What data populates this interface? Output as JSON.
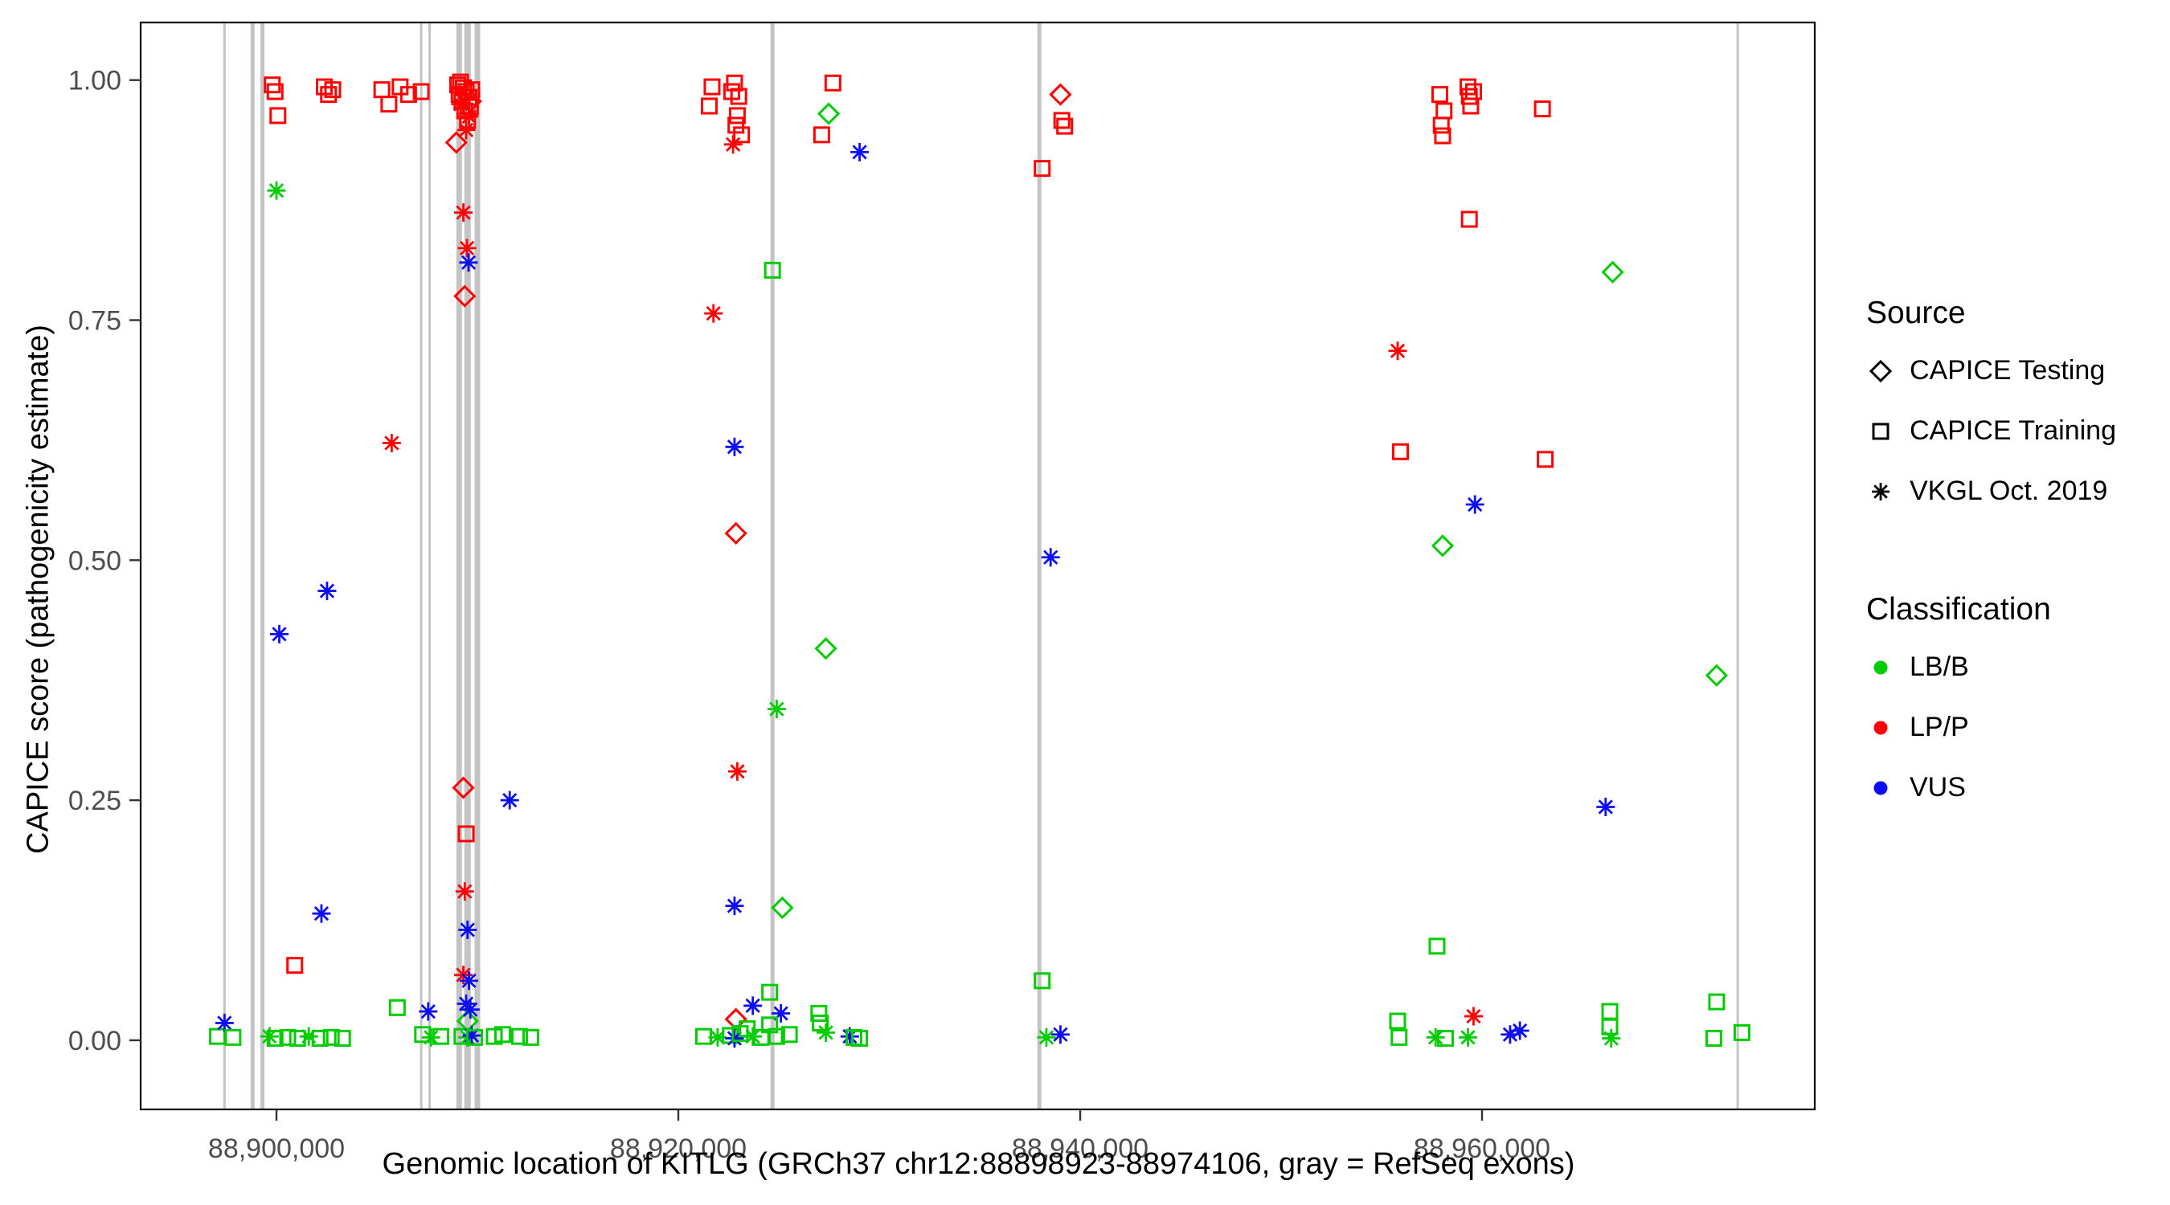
{
  "colors": {
    "LB/B": "#00CC00",
    "LP/P": "#FF0000",
    "VUS": "#0E0EF5"
  },
  "legend": {
    "source": {
      "title": "Source",
      "items": [
        {
          "label": "CAPICE Testing",
          "marker": "diamond"
        },
        {
          "label": "CAPICE Training",
          "marker": "square"
        },
        {
          "label": "VKGL Oct. 2019",
          "marker": "asterisk"
        }
      ]
    },
    "classification": {
      "title": "Classification",
      "items": [
        {
          "label": "LB/B",
          "color": "#00CC00"
        },
        {
          "label": "LP/P",
          "color": "#FF0000"
        },
        {
          "label": "VUS",
          "color": "#0E0EF5"
        }
      ]
    }
  },
  "chart_data": {
    "type": "scatter",
    "title": "",
    "xlabel": "Genomic location of KITLG (GRCh37 chr12:88898923-88974106, gray = RefSeq exons)",
    "ylabel": "CAPICE score (pathogenicity estimate)",
    "xlim": [
      88893240,
      88976560
    ],
    "ylim": [
      -0.072,
      1.06
    ],
    "xticks": [
      {
        "value": 88900000,
        "label": "88,900,000"
      },
      {
        "value": 88920000,
        "label": "88,920,000"
      },
      {
        "value": 88940000,
        "label": "88,940,000"
      },
      {
        "value": 88960000,
        "label": "88,960,000"
      }
    ],
    "yticks": [
      {
        "value": 0.0,
        "label": "0.00"
      },
      {
        "value": 0.25,
        "label": "0.25"
      },
      {
        "value": 0.5,
        "label": "0.50"
      },
      {
        "value": 0.75,
        "label": "0.75"
      },
      {
        "value": 1.0,
        "label": "1.00"
      }
    ],
    "exon_color": "#C4C4C4",
    "exons": [
      {
        "x": 88897413,
        "w": 3
      },
      {
        "x": 88898811,
        "w": 5
      },
      {
        "x": 88899301,
        "w": 5
      },
      {
        "x": 88907203,
        "w": 3
      },
      {
        "x": 88907622,
        "w": 3
      },
      {
        "x": 88909091,
        "w": 7
      },
      {
        "x": 88909510,
        "w": 8
      },
      {
        "x": 88910000,
        "w": 7
      },
      {
        "x": 88924686,
        "w": 5
      },
      {
        "x": 88937969,
        "w": 5
      },
      {
        "x": 88972725,
        "w": 3
      }
    ],
    "points": {
      "columns": [
        "genomic_position",
        "capice_score",
        "source",
        "classification"
      ],
      "source_codes": {
        "testing": "CAPICE Testing",
        "training": "CAPICE Training",
        "vkgl": "VKGL Oct. 2019"
      },
      "rows": [
        [
          88897063,
          0.004,
          "training",
          "LB/B"
        ],
        [
          88897413,
          0.018,
          "vkgl",
          "VUS"
        ],
        [
          88897833,
          0.003,
          "training",
          "LB/B"
        ],
        [
          88899650,
          0.004,
          "vkgl",
          "LB/B"
        ],
        [
          88899930,
          0.002,
          "training",
          "LB/B"
        ],
        [
          88900559,
          0.003,
          "training",
          "LB/B"
        ],
        [
          88901049,
          0.002,
          "training",
          "LB/B"
        ],
        [
          88901608,
          0.004,
          "vkgl",
          "LB/B"
        ],
        [
          88902168,
          0.002,
          "training",
          "LB/B"
        ],
        [
          88902727,
          0.003,
          "training",
          "LB/B"
        ],
        [
          88903287,
          0.002,
          "training",
          "LB/B"
        ],
        [
          88899790,
          0.995,
          "training",
          "LP/P"
        ],
        [
          88899930,
          0.988,
          "training",
          "LP/P"
        ],
        [
          88900070,
          0.963,
          "training",
          "LP/P"
        ],
        [
          88902380,
          0.993,
          "training",
          "LP/P"
        ],
        [
          88902590,
          0.985,
          "training",
          "LP/P"
        ],
        [
          88902800,
          0.99,
          "training",
          "LP/P"
        ],
        [
          88905245,
          0.99,
          "training",
          "LP/P"
        ],
        [
          88905594,
          0.975,
          "training",
          "LP/P"
        ],
        [
          88906153,
          0.993,
          "training",
          "LP/P"
        ],
        [
          88906573,
          0.985,
          "training",
          "LP/P"
        ],
        [
          88907202,
          0.988,
          "training",
          "LP/P"
        ],
        [
          88900000,
          0.885,
          "vkgl",
          "LB/B"
        ],
        [
          88905734,
          0.622,
          "vkgl",
          "LP/P"
        ],
        [
          88900140,
          0.423,
          "vkgl",
          "VUS"
        ],
        [
          88902517,
          0.468,
          "vkgl",
          "VUS"
        ],
        [
          88902238,
          0.132,
          "vkgl",
          "VUS"
        ],
        [
          88900909,
          0.078,
          "training",
          "LP/P"
        ],
        [
          88906013,
          0.034,
          "training",
          "LB/B"
        ],
        [
          88907272,
          0.006,
          "training",
          "LB/B"
        ],
        [
          88907692,
          0.003,
          "vkgl",
          "LB/B"
        ],
        [
          88908181,
          0.004,
          "training",
          "LB/B"
        ],
        [
          88907552,
          0.03,
          "vkgl",
          "VUS"
        ],
        [
          88909021,
          0.995,
          "training",
          "LP/P"
        ],
        [
          88909091,
          0.985,
          "training",
          "LP/P"
        ],
        [
          88909161,
          0.998,
          "training",
          "LP/P"
        ],
        [
          88909231,
          0.978,
          "training",
          "LP/P"
        ],
        [
          88909301,
          0.992,
          "training",
          "LP/P"
        ],
        [
          88909371,
          0.968,
          "training",
          "LP/P"
        ],
        [
          88909441,
          0.988,
          "training",
          "LP/P"
        ],
        [
          88909511,
          0.958,
          "training",
          "LP/P"
        ],
        [
          88909581,
          0.982,
          "training",
          "LP/P"
        ],
        [
          88909651,
          0.972,
          "training",
          "LP/P"
        ],
        [
          88909721,
          0.99,
          "training",
          "LP/P"
        ],
        [
          88909161,
          0.975,
          "vkgl",
          "LP/P"
        ],
        [
          88909441,
          0.948,
          "vkgl",
          "LP/P"
        ],
        [
          88909581,
          0.962,
          "vkgl",
          "LP/P"
        ],
        [
          88908951,
          0.935,
          "testing",
          "LP/P"
        ],
        [
          88909671,
          0.978,
          "testing",
          "LP/P"
        ],
        [
          88909301,
          0.862,
          "vkgl",
          "LP/P"
        ],
        [
          88909481,
          0.825,
          "vkgl",
          "LP/P"
        ],
        [
          88909561,
          0.81,
          "vkgl",
          "VUS"
        ],
        [
          88909371,
          0.775,
          "testing",
          "LP/P"
        ],
        [
          88909301,
          0.263,
          "testing",
          "LP/P"
        ],
        [
          88909441,
          0.215,
          "training",
          "LP/P"
        ],
        [
          88909371,
          0.155,
          "vkgl",
          "LP/P"
        ],
        [
          88909511,
          0.115,
          "vkgl",
          "VUS"
        ],
        [
          88909301,
          0.068,
          "vkgl",
          "LP/P"
        ],
        [
          88909581,
          0.062,
          "vkgl",
          "VUS"
        ],
        [
          88909441,
          0.038,
          "vkgl",
          "VUS"
        ],
        [
          88909511,
          0.02,
          "testing",
          "LB/B"
        ],
        [
          88909651,
          0.032,
          "vkgl",
          "VUS"
        ],
        [
          88909231,
          0.004,
          "training",
          "LB/B"
        ],
        [
          88909511,
          0.003,
          "vkgl",
          "LB/B"
        ],
        [
          88909721,
          0.005,
          "vkgl",
          "VUS"
        ],
        [
          88909860,
          0.003,
          "training",
          "LB/B"
        ],
        [
          88910839,
          0.004,
          "training",
          "LB/B"
        ],
        [
          88911258,
          0.006,
          "training",
          "LB/B"
        ],
        [
          88911608,
          0.25,
          "vkgl",
          "VUS"
        ],
        [
          88912097,
          0.004,
          "training",
          "LB/B"
        ],
        [
          88912657,
          0.003,
          "training",
          "LB/B"
        ],
        [
          88921538,
          0.973,
          "training",
          "LP/P"
        ],
        [
          88921678,
          0.993,
          "training",
          "LP/P"
        ],
        [
          88922657,
          0.988,
          "training",
          "LP/P"
        ],
        [
          88922797,
          0.997,
          "training",
          "LP/P"
        ],
        [
          88922867,
          0.953,
          "training",
          "LP/P"
        ],
        [
          88922937,
          0.963,
          "training",
          "LP/P"
        ],
        [
          88923007,
          0.983,
          "training",
          "LP/P"
        ],
        [
          88923147,
          0.943,
          "training",
          "LP/P"
        ],
        [
          88922727,
          0.933,
          "vkgl",
          "LP/P"
        ],
        [
          88927134,
          0.943,
          "training",
          "LP/P"
        ],
        [
          88927483,
          0.965,
          "testing",
          "LB/B"
        ],
        [
          88927693,
          0.997,
          "training",
          "LP/P"
        ],
        [
          88929022,
          0.925,
          "vkgl",
          "VUS"
        ],
        [
          88921748,
          0.757,
          "vkgl",
          "LP/P"
        ],
        [
          88924686,
          0.802,
          "training",
          "LB/B"
        ],
        [
          88922797,
          0.618,
          "vkgl",
          "VUS"
        ],
        [
          88922867,
          0.528,
          "testing",
          "LP/P"
        ],
        [
          88927343,
          0.408,
          "testing",
          "LB/B"
        ],
        [
          88924896,
          0.345,
          "vkgl",
          "LB/B"
        ],
        [
          88922937,
          0.28,
          "vkgl",
          "LP/P"
        ],
        [
          88922797,
          0.14,
          "vkgl",
          "VUS"
        ],
        [
          88925176,
          0.138,
          "testing",
          "LB/B"
        ],
        [
          88924546,
          0.05,
          "training",
          "LB/B"
        ],
        [
          88922867,
          0.022,
          "testing",
          "LP/P"
        ],
        [
          88923707,
          0.036,
          "vkgl",
          "VUS"
        ],
        [
          88925106,
          0.028,
          "vkgl",
          "VUS"
        ],
        [
          88921258,
          0.004,
          "training",
          "LB/B"
        ],
        [
          88921958,
          0.003,
          "vkgl",
          "LB/B"
        ],
        [
          88922587,
          0.005,
          "training",
          "LB/B"
        ],
        [
          88922797,
          0.002,
          "vkgl",
          "VUS"
        ],
        [
          88923077,
          0.007,
          "training",
          "LB/B"
        ],
        [
          88923427,
          0.012,
          "training",
          "LB/B"
        ],
        [
          88923707,
          0.004,
          "vkgl",
          "LB/B"
        ],
        [
          88924127,
          0.003,
          "training",
          "LB/B"
        ],
        [
          88924546,
          0.016,
          "training",
          "LB/B"
        ],
        [
          88924896,
          0.004,
          "training",
          "LB/B"
        ],
        [
          88925525,
          0.006,
          "training",
          "LB/B"
        ],
        [
          88926994,
          0.028,
          "training",
          "LB/B"
        ],
        [
          88927064,
          0.018,
          "training",
          "LB/B"
        ],
        [
          88927343,
          0.008,
          "vkgl",
          "LB/B"
        ],
        [
          88928532,
          0.004,
          "vkgl",
          "VUS"
        ],
        [
          88928742,
          0.003,
          "training",
          "LB/B"
        ],
        [
          88929022,
          0.002,
          "training",
          "LB/B"
        ],
        [
          88938109,
          0.908,
          "training",
          "LP/P"
        ],
        [
          88939018,
          0.985,
          "testing",
          "LP/P"
        ],
        [
          88939088,
          0.958,
          "training",
          "LP/P"
        ],
        [
          88939228,
          0.952,
          "training",
          "LP/P"
        ],
        [
          88938529,
          0.503,
          "vkgl",
          "VUS"
        ],
        [
          88938109,
          0.062,
          "training",
          "LB/B"
        ],
        [
          88938319,
          0.003,
          "vkgl",
          "LB/B"
        ],
        [
          88939018,
          0.006,
          "vkgl",
          "VUS"
        ],
        [
          88955801,
          0.718,
          "vkgl",
          "LP/P"
        ],
        [
          88955941,
          0.613,
          "training",
          "LP/P"
        ],
        [
          88957899,
          0.985,
          "training",
          "LP/P"
        ],
        [
          88957969,
          0.953,
          "training",
          "LP/P"
        ],
        [
          88958039,
          0.942,
          "training",
          "LP/P"
        ],
        [
          88958109,
          0.968,
          "training",
          "LP/P"
        ],
        [
          88959298,
          0.993,
          "training",
          "LP/P"
        ],
        [
          88959368,
          0.983,
          "training",
          "LP/P"
        ],
        [
          88959438,
          0.973,
          "training",
          "LP/P"
        ],
        [
          88959578,
          0.988,
          "training",
          "LP/P"
        ],
        [
          88959368,
          0.855,
          "training",
          "LP/P"
        ],
        [
          88963004,
          0.97,
          "training",
          "LP/P"
        ],
        [
          88963144,
          0.605,
          "training",
          "LP/P"
        ],
        [
          88959648,
          0.558,
          "vkgl",
          "VUS"
        ],
        [
          88958039,
          0.515,
          "testing",
          "LB/B"
        ],
        [
          88957759,
          0.098,
          "training",
          "LB/B"
        ],
        [
          88959578,
          0.025,
          "vkgl",
          "LP/P"
        ],
        [
          88955801,
          0.02,
          "training",
          "LB/B"
        ],
        [
          88955871,
          0.003,
          "training",
          "LB/B"
        ],
        [
          88957689,
          0.003,
          "vkgl",
          "LB/B"
        ],
        [
          88958179,
          0.002,
          "training",
          "LB/B"
        ],
        [
          88959298,
          0.003,
          "vkgl",
          "LB/B"
        ],
        [
          88961396,
          0.006,
          "vkgl",
          "VUS"
        ],
        [
          88961885,
          0.01,
          "vkgl",
          "VUS"
        ],
        [
          88966501,
          0.8,
          "testing",
          "LB/B"
        ],
        [
          88966151,
          0.243,
          "vkgl",
          "VUS"
        ],
        [
          88966361,
          0.03,
          "training",
          "LB/B"
        ],
        [
          88966361,
          0.014,
          "training",
          "LB/B"
        ],
        [
          88966431,
          0.002,
          "vkgl",
          "LB/B"
        ],
        [
          88971676,
          0.38,
          "testing",
          "LB/B"
        ],
        [
          88971676,
          0.04,
          "training",
          "LB/B"
        ],
        [
          88971536,
          0.002,
          "training",
          "LB/B"
        ],
        [
          88972935,
          0.008,
          "training",
          "LB/B"
        ]
      ]
    }
  }
}
